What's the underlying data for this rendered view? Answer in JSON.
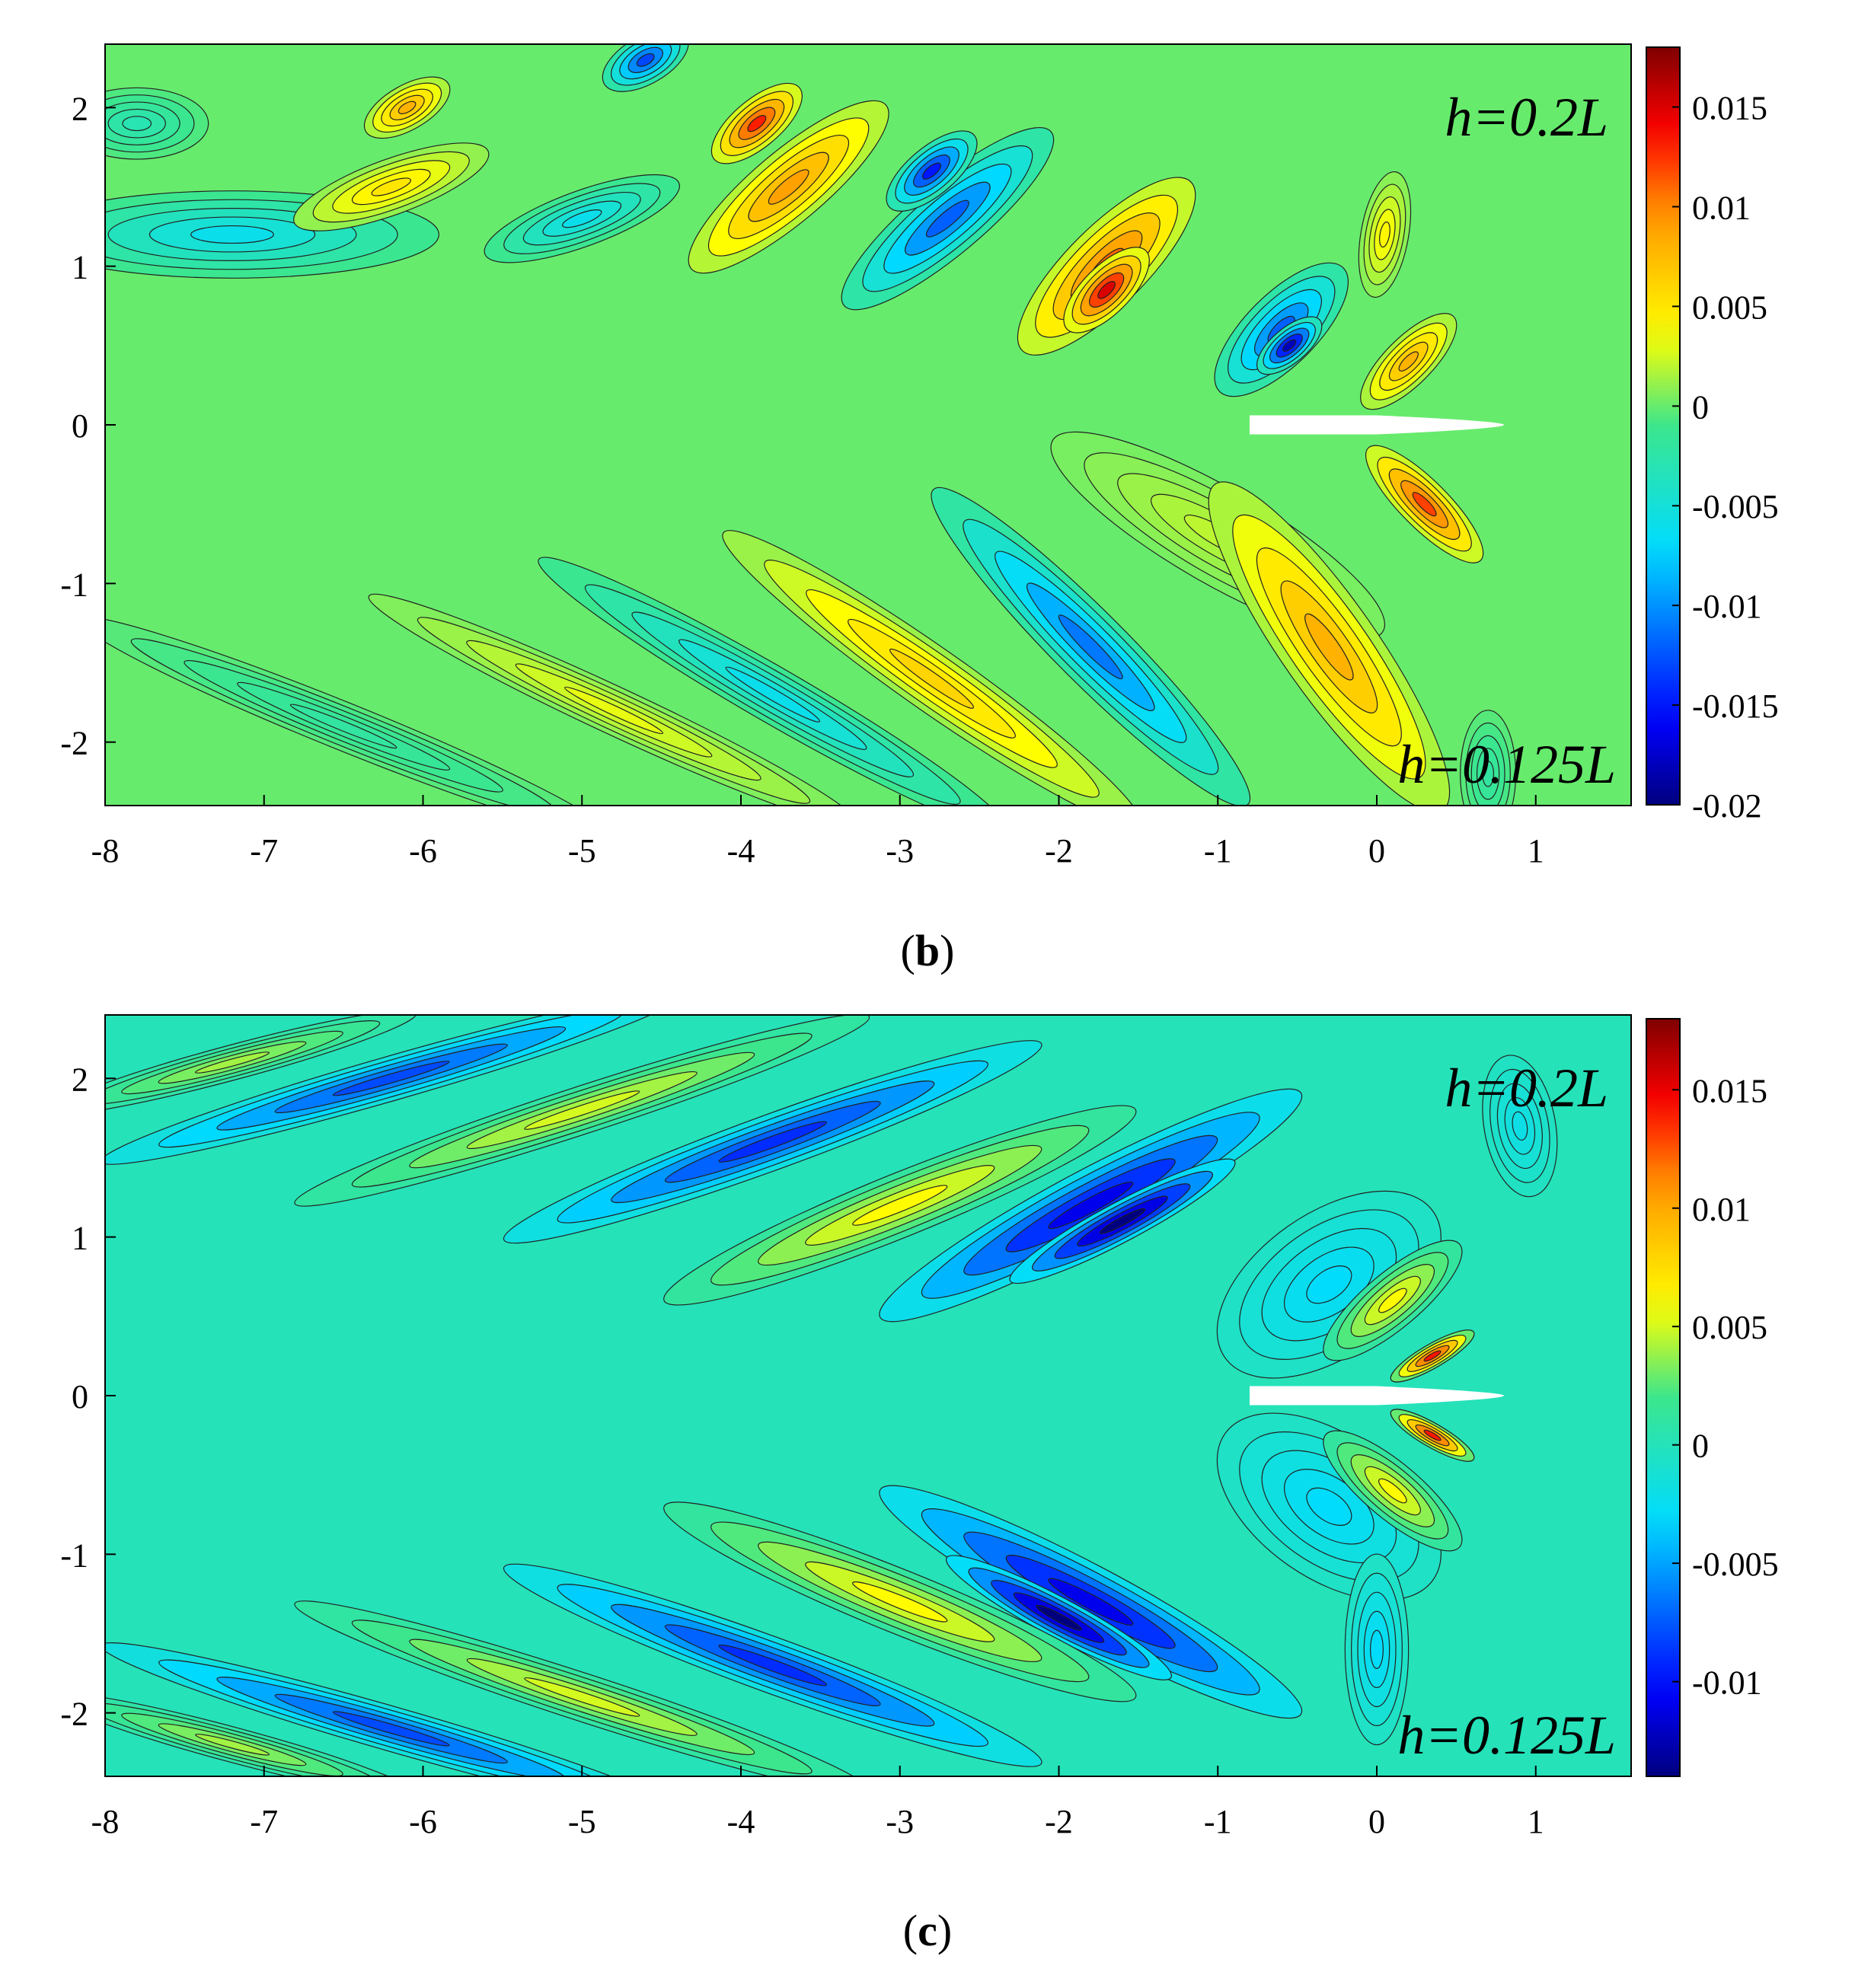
{
  "chart_data": [
    {
      "type": "heatmap",
      "subtype": "filled-contour",
      "panel_label": "b",
      "x": {
        "min": -8,
        "max": 1.6,
        "ticks": [
          -8,
          -7,
          -6,
          -5,
          -4,
          -3,
          -2,
          -1,
          0,
          1
        ]
      },
      "y": {
        "min": -2.4,
        "max": 2.4,
        "ticks": [
          -2,
          -1,
          0,
          1,
          2
        ]
      },
      "colorbar": {
        "min": -0.02,
        "max": 0.018,
        "ticks": [
          -0.02,
          -0.015,
          -0.01,
          -0.005,
          0,
          0.005,
          0.01,
          0.015
        ],
        "tick_labels": [
          "-0.02",
          "-0.015",
          "-0.01",
          "-0.005",
          "0",
          "0.005",
          "0.01",
          "0.015"
        ]
      },
      "annotations": {
        "upper_half": "h=0.2L",
        "lower_half": "h=0.125L"
      },
      "field": {
        "body": {
          "x_start": -0.8,
          "x_end": 0.8,
          "half_thickness": 0.06
        },
        "upper": [
          {
            "x": -7.8,
            "y": 1.9,
            "value": -0.003,
            "length": 0.9,
            "width": 0.45,
            "tilt": 0
          },
          {
            "x": -7.2,
            "y": 1.2,
            "value": -0.006,
            "length": 2.6,
            "width": 0.55,
            "tilt": 0
          },
          {
            "x": -6.2,
            "y": 1.5,
            "value": 0.005,
            "length": 1.3,
            "width": 0.35,
            "tilt": -20
          },
          {
            "x": -6.1,
            "y": 2.0,
            "value": 0.008,
            "length": 0.6,
            "width": 0.28,
            "tilt": -30
          },
          {
            "x": -5.0,
            "y": 1.3,
            "value": -0.006,
            "length": 1.3,
            "width": 0.35,
            "tilt": -20
          },
          {
            "x": -4.6,
            "y": 2.3,
            "value": -0.013,
            "length": 0.6,
            "width": 0.3,
            "tilt": -30
          },
          {
            "x": -3.7,
            "y": 1.5,
            "value": 0.009,
            "length": 1.6,
            "width": 0.45,
            "tilt": -40
          },
          {
            "x": -3.9,
            "y": 1.9,
            "value": 0.013,
            "length": 0.7,
            "width": 0.3,
            "tilt": -40
          },
          {
            "x": -2.7,
            "y": 1.3,
            "value": -0.012,
            "length": 1.7,
            "width": 0.45,
            "tilt": -40
          },
          {
            "x": -2.8,
            "y": 1.6,
            "value": -0.015,
            "length": 0.7,
            "width": 0.3,
            "tilt": -40
          },
          {
            "x": -1.7,
            "y": 1.0,
            "value": 0.011,
            "length": 1.5,
            "width": 0.5,
            "tilt": -45
          },
          {
            "x": -1.7,
            "y": 0.85,
            "value": 0.015,
            "length": 0.7,
            "width": 0.3,
            "tilt": -45
          },
          {
            "x": -0.6,
            "y": 0.6,
            "value": -0.012,
            "length": 1.1,
            "width": 0.45,
            "tilt": -45
          },
          {
            "x": -0.55,
            "y": 0.5,
            "value": -0.018,
            "length": 0.5,
            "width": 0.22,
            "tilt": -40
          },
          {
            "x": 0.2,
            "y": 0.4,
            "value": 0.008,
            "length": 0.8,
            "width": 0.3,
            "tilt": -45
          },
          {
            "x": 0.05,
            "y": 1.2,
            "value": 0.004,
            "length": 0.8,
            "width": 0.3,
            "tilt": -80
          }
        ],
        "lower": [
          {
            "x": -1.0,
            "y": -0.7,
            "value": 0.002,
            "length": 2.4,
            "width": 0.6,
            "tilt": 30
          },
          {
            "x": -0.3,
            "y": -1.4,
            "value": 0.008,
            "length": 2.5,
            "width": 0.6,
            "tilt": 55
          },
          {
            "x": 0.3,
            "y": -0.5,
            "value": 0.012,
            "length": 1.0,
            "width": 0.3,
            "tilt": 45
          },
          {
            "x": -1.8,
            "y": -1.4,
            "value": -0.011,
            "length": 2.8,
            "width": 0.45,
            "tilt": 45
          },
          {
            "x": -2.8,
            "y": -1.6,
            "value": 0.006,
            "length": 3.2,
            "width": 0.4,
            "tilt": 35
          },
          {
            "x": -3.8,
            "y": -1.7,
            "value": -0.006,
            "length": 3.4,
            "width": 0.35,
            "tilt": 30
          },
          {
            "x": -4.8,
            "y": -1.8,
            "value": 0.003,
            "length": 3.4,
            "width": 0.3,
            "tilt": 25
          },
          {
            "x": -6.5,
            "y": -1.9,
            "value": -0.002,
            "length": 3.6,
            "width": 0.3,
            "tilt": 22
          },
          {
            "x": 0.7,
            "y": -2.2,
            "value": -0.002,
            "length": 0.8,
            "width": 0.35,
            "tilt": 90
          }
        ]
      }
    },
    {
      "type": "heatmap",
      "subtype": "filled-contour",
      "panel_label": "c",
      "x": {
        "min": -8,
        "max": 1.6,
        "ticks": [
          -8,
          -7,
          -6,
          -5,
          -4,
          -3,
          -2,
          -1,
          0,
          1
        ]
      },
      "y": {
        "min": -2.4,
        "max": 2.4,
        "ticks": [
          -2,
          -1,
          0,
          1,
          2
        ]
      },
      "colorbar": {
        "min": -0.014,
        "max": 0.018,
        "ticks": [
          -0.01,
          -0.005,
          0,
          0.005,
          0.01,
          0.015
        ],
        "tick_labels": [
          "-0.01",
          "-0.005",
          "0",
          "0.005",
          "0.01",
          "0.015"
        ]
      },
      "annotations": {
        "upper_half": "h=0.2L",
        "lower_half": "h=0.125L"
      },
      "field": {
        "body": {
          "x_start": -0.8,
          "x_end": 0.8,
          "half_thickness": 0.06
        },
        "upper": [
          {
            "x": -0.3,
            "y": 0.7,
            "value": -0.003,
            "length": 1.6,
            "width": 0.9,
            "tilt": -35
          },
          {
            "x": -1.8,
            "y": 1.2,
            "value": -0.011,
            "length": 3.0,
            "width": 0.45,
            "tilt": -28
          },
          {
            "x": -1.6,
            "y": 1.1,
            "value": -0.014,
            "length": 1.6,
            "width": 0.25,
            "tilt": -28
          },
          {
            "x": -3.0,
            "y": 1.2,
            "value": 0.006,
            "length": 3.2,
            "width": 0.4,
            "tilt": -22
          },
          {
            "x": -3.8,
            "y": 1.6,
            "value": -0.009,
            "length": 3.6,
            "width": 0.35,
            "tilt": -20
          },
          {
            "x": -5.0,
            "y": 1.8,
            "value": 0.005,
            "length": 3.8,
            "width": 0.3,
            "tilt": -18
          },
          {
            "x": -6.2,
            "y": 2.0,
            "value": -0.008,
            "length": 3.8,
            "width": 0.28,
            "tilt": -16
          },
          {
            "x": -7.2,
            "y": 2.1,
            "value": 0.004,
            "length": 2.4,
            "width": 0.22,
            "tilt": -15
          },
          {
            "x": 0.1,
            "y": 0.6,
            "value": 0.006,
            "length": 1.1,
            "width": 0.35,
            "tilt": -40
          },
          {
            "x": 0.35,
            "y": 0.25,
            "value": 0.014,
            "length": 0.6,
            "width": 0.15,
            "tilt": -30
          },
          {
            "x": 0.9,
            "y": 1.7,
            "value": -0.002,
            "length": 0.9,
            "width": 0.45,
            "tilt": 80
          }
        ],
        "lower": [
          {
            "x": -0.3,
            "y": -0.7,
            "value": -0.003,
            "length": 1.6,
            "width": 0.9,
            "tilt": 35
          },
          {
            "x": -1.8,
            "y": -1.3,
            "value": -0.011,
            "length": 3.0,
            "width": 0.45,
            "tilt": 28
          },
          {
            "x": -2.0,
            "y": -1.4,
            "value": -0.014,
            "length": 1.6,
            "width": 0.25,
            "tilt": 28
          },
          {
            "x": -3.0,
            "y": -1.3,
            "value": 0.006,
            "length": 3.2,
            "width": 0.4,
            "tilt": 22
          },
          {
            "x": -3.8,
            "y": -1.7,
            "value": -0.009,
            "length": 3.6,
            "width": 0.35,
            "tilt": 20
          },
          {
            "x": -5.0,
            "y": -1.9,
            "value": 0.005,
            "length": 3.8,
            "width": 0.3,
            "tilt": 18
          },
          {
            "x": -6.2,
            "y": -2.1,
            "value": -0.008,
            "length": 3.8,
            "width": 0.28,
            "tilt": 16
          },
          {
            "x": -7.2,
            "y": -2.2,
            "value": 0.004,
            "length": 2.4,
            "width": 0.22,
            "tilt": 15
          },
          {
            "x": 0.1,
            "y": -0.6,
            "value": 0.006,
            "length": 1.1,
            "width": 0.35,
            "tilt": 40
          },
          {
            "x": 0.35,
            "y": -0.25,
            "value": 0.014,
            "length": 0.6,
            "width": 0.15,
            "tilt": 30
          },
          {
            "x": 0.0,
            "y": -1.6,
            "value": -0.003,
            "length": 1.2,
            "width": 0.4,
            "tilt": 90
          }
        ]
      }
    }
  ]
}
